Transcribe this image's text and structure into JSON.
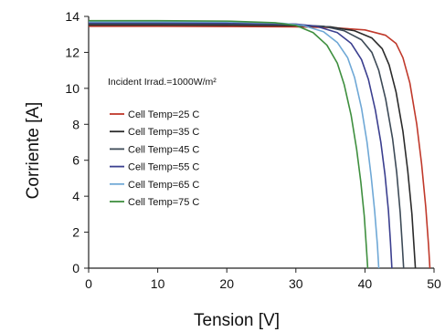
{
  "chart_data": {
    "type": "line",
    "xlabel": "Tension [V]",
    "ylabel": "Corriente [A]",
    "xlim": [
      0,
      50
    ],
    "ylim": [
      0,
      14
    ],
    "xticks": [
      "0",
      "10",
      "20",
      "30",
      "40",
      "50"
    ],
    "yticks": [
      "0",
      "2",
      "4",
      "6",
      "8",
      "10",
      "12",
      "14"
    ],
    "grid": false,
    "legend_position": "left",
    "annotation": "Incident Irrad.=1000W/m²",
    "series": [
      {
        "name": "Cell Temp=25 C",
        "color": "#c0392b",
        "isc": 13.45,
        "voc": 49.4,
        "x": [
          0,
          10,
          20,
          30,
          35,
          40,
          43,
          44.5,
          45.5,
          46.5,
          47.5,
          48.2,
          48.8,
          49.2,
          49.4
        ],
        "y": [
          13.45,
          13.45,
          13.44,
          13.42,
          13.38,
          13.25,
          12.95,
          12.5,
          11.7,
          10.3,
          8.0,
          5.8,
          3.4,
          1.3,
          0
        ]
      },
      {
        "name": "Cell Temp=35 C",
        "color": "#2b2b2b",
        "isc": 13.52,
        "voc": 47.3,
        "x": [
          0,
          10,
          20,
          30,
          35,
          38.5,
          41,
          42.5,
          43.5,
          44.5,
          45.5,
          46.2,
          46.8,
          47.1,
          47.3
        ],
        "y": [
          13.52,
          13.52,
          13.51,
          13.48,
          13.42,
          13.2,
          12.8,
          12.2,
          11.3,
          9.8,
          7.6,
          5.4,
          3.0,
          1.2,
          0
        ]
      },
      {
        "name": "Cell Temp=45 C",
        "color": "#3d4a57",
        "isc": 13.58,
        "voc": 45.6,
        "x": [
          0,
          10,
          20,
          30,
          34,
          37,
          39.5,
          41,
          42,
          43,
          44,
          44.6,
          45.1,
          45.4,
          45.6
        ],
        "y": [
          13.58,
          13.58,
          13.57,
          13.53,
          13.45,
          13.2,
          12.7,
          12.0,
          11.0,
          9.4,
          7.2,
          5.3,
          3.1,
          1.3,
          0
        ]
      },
      {
        "name": "Cell Temp=55 C",
        "color": "#3b3f8f",
        "isc": 13.64,
        "voc": 43.9,
        "x": [
          0,
          10,
          20,
          30,
          33,
          36,
          38,
          39.5,
          40.5,
          41.5,
          42.3,
          42.9,
          43.4,
          43.7,
          43.9
        ],
        "y": [
          13.64,
          13.64,
          13.63,
          13.57,
          13.45,
          13.1,
          12.5,
          11.6,
          10.5,
          8.8,
          7.0,
          5.2,
          3.2,
          1.4,
          0
        ]
      },
      {
        "name": "Cell Temp=65 C",
        "color": "#6fa8d6",
        "isc": 13.7,
        "voc": 42.0,
        "x": [
          0,
          10,
          20,
          28,
          31,
          34,
          36,
          37.5,
          38.5,
          39.5,
          40.3,
          40.9,
          41.4,
          41.8,
          42.0
        ],
        "y": [
          13.7,
          13.7,
          13.69,
          13.62,
          13.5,
          13.15,
          12.55,
          11.7,
          10.6,
          8.9,
          7.0,
          5.1,
          3.2,
          1.3,
          0
        ]
      },
      {
        "name": "Cell Temp=75 C",
        "color": "#3f8f3f",
        "isc": 13.76,
        "voc": 40.4,
        "x": [
          0,
          10,
          20,
          27,
          30,
          32.5,
          34.5,
          36,
          37,
          38,
          38.8,
          39.4,
          39.9,
          40.2,
          40.4
        ],
        "y": [
          13.76,
          13.76,
          13.74,
          13.65,
          13.5,
          13.1,
          12.4,
          11.4,
          10.2,
          8.5,
          6.6,
          4.8,
          2.9,
          1.2,
          0
        ]
      }
    ]
  }
}
